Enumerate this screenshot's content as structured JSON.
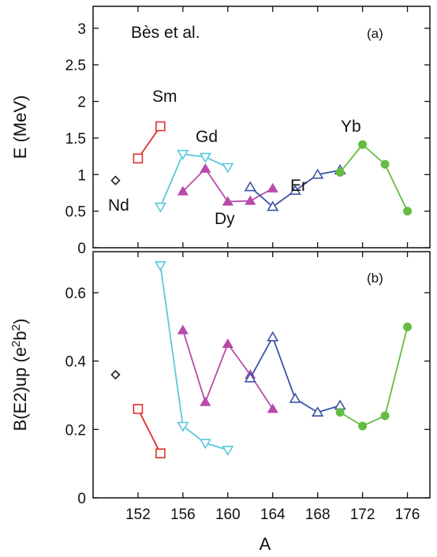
{
  "chart_data": [
    {
      "type": "line",
      "panel_label": "(a)",
      "annotation": "Bès et al.",
      "xlabel": "",
      "ylabel": "E (MeV)",
      "xlim": [
        148,
        178
      ],
      "ylim": [
        0,
        3.3
      ],
      "xticks": [],
      "yticks": [
        "0",
        "0.5",
        "1",
        "1.5",
        "2",
        "2.5",
        "3"
      ],
      "grid": false,
      "series": [
        {
          "name": "Nd",
          "color": "#222222",
          "marker": "diamond-open",
          "x": [
            150
          ],
          "y": [
            0.92
          ]
        },
        {
          "name": "Sm",
          "color": "#e0302a",
          "marker": "square-open",
          "x": [
            152,
            154
          ],
          "y": [
            1.22,
            1.66
          ]
        },
        {
          "name": "Gd",
          "color": "#5bc8dc",
          "marker": "triangle-down-open",
          "x": [
            154,
            156,
            158,
            160
          ],
          "y": [
            0.56,
            1.28,
            1.24,
            1.1
          ]
        },
        {
          "name": "Dy",
          "color": "#b84aaa",
          "marker": "triangle-up-filled",
          "x": [
            156,
            158,
            160,
            162,
            164
          ],
          "y": [
            0.77,
            1.08,
            0.63,
            0.64,
            0.81
          ]
        },
        {
          "name": "Er",
          "color": "#3a54a8",
          "marker": "triangle-up-open",
          "x": [
            162,
            164,
            166,
            168,
            170
          ],
          "y": [
            0.83,
            0.56,
            0.78,
            1.0,
            1.06
          ]
        },
        {
          "name": "Yb",
          "color": "#66bb44",
          "marker": "circle-filled",
          "x": [
            170,
            172,
            174,
            176
          ],
          "y": [
            1.03,
            1.41,
            1.14,
            0.5
          ]
        }
      ]
    },
    {
      "type": "line",
      "panel_label": "(b)",
      "xlabel": "A",
      "ylabel": "B(E2)up (e²b²)",
      "ylabel_main": "B(E2)up (e",
      "ylabel_sup1": "2",
      "ylabel_mid": "b",
      "ylabel_sup2": "2",
      "ylabel_end": ")",
      "xlim": [
        148,
        178
      ],
      "ylim": [
        0,
        0.72
      ],
      "xticks": [
        "152",
        "156",
        "160",
        "164",
        "168",
        "172",
        "176"
      ],
      "yticks": [
        "0",
        "0.2",
        "0.4",
        "0.6"
      ],
      "grid": false,
      "series": [
        {
          "color": "#222222",
          "marker": "diamond-open",
          "x": [
            150
          ],
          "y": [
            0.36
          ]
        },
        {
          "color": "#e0302a",
          "marker": "square-open",
          "x": [
            152,
            154
          ],
          "y": [
            0.26,
            0.13
          ]
        },
        {
          "color": "#5bc8dc",
          "marker": "triangle-down-open",
          "x": [
            154,
            156,
            158,
            160
          ],
          "y": [
            0.68,
            0.21,
            0.16,
            0.14
          ]
        },
        {
          "color": "#b84aaa",
          "marker": "triangle-up-filled",
          "x": [
            156,
            158,
            160,
            162,
            164
          ],
          "y": [
            0.49,
            0.28,
            0.45,
            0.36,
            0.26
          ]
        },
        {
          "color": "#3a54a8",
          "marker": "triangle-up-open",
          "x": [
            162,
            164,
            166,
            168,
            170
          ],
          "y": [
            0.35,
            0.47,
            0.29,
            0.25,
            0.27
          ]
        },
        {
          "color": "#66bb44",
          "marker": "circle-filled",
          "x": [
            170,
            172,
            174,
            176
          ],
          "y": [
            0.25,
            0.21,
            0.24,
            0.5
          ]
        }
      ]
    }
  ]
}
